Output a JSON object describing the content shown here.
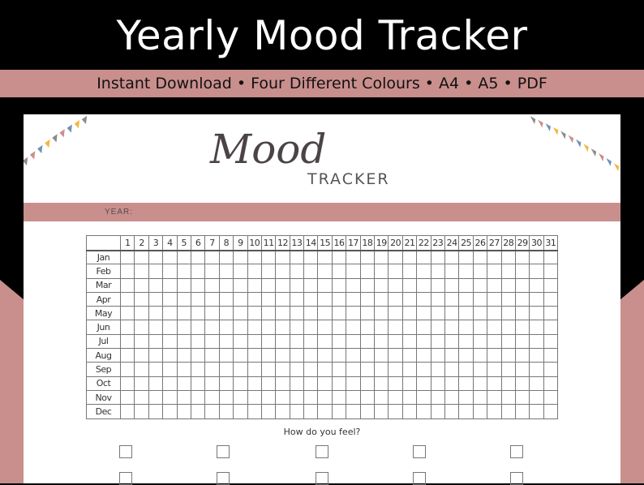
{
  "banner": {
    "title": "Yearly Mood Tracker",
    "subtitle": "Instant Download  • Four Different Colours • A4 • A5 • PDF"
  },
  "colors": {
    "accent": "#c98f8d",
    "background": "#000000",
    "bunting": [
      "#8e8a88",
      "#c98f8d",
      "#6f95b4",
      "#f3b73f"
    ]
  },
  "sheet": {
    "title_script": "Mood",
    "title_caps": "TRACKER",
    "year_label": "YEAR:",
    "months": [
      "Jan",
      "Feb",
      "Mar",
      "Apr",
      "May",
      "Jun",
      "Jul",
      "Aug",
      "Sep",
      "Oct",
      "Nov",
      "Dec"
    ],
    "days": [
      "1",
      "2",
      "3",
      "4",
      "5",
      "6",
      "7",
      "8",
      "9",
      "10",
      "11",
      "12",
      "13",
      "14",
      "15",
      "16",
      "17",
      "18",
      "19",
      "20",
      "21",
      "22",
      "23",
      "24",
      "25",
      "26",
      "27",
      "28",
      "29",
      "30",
      "31"
    ],
    "question": "How do you feel?"
  }
}
